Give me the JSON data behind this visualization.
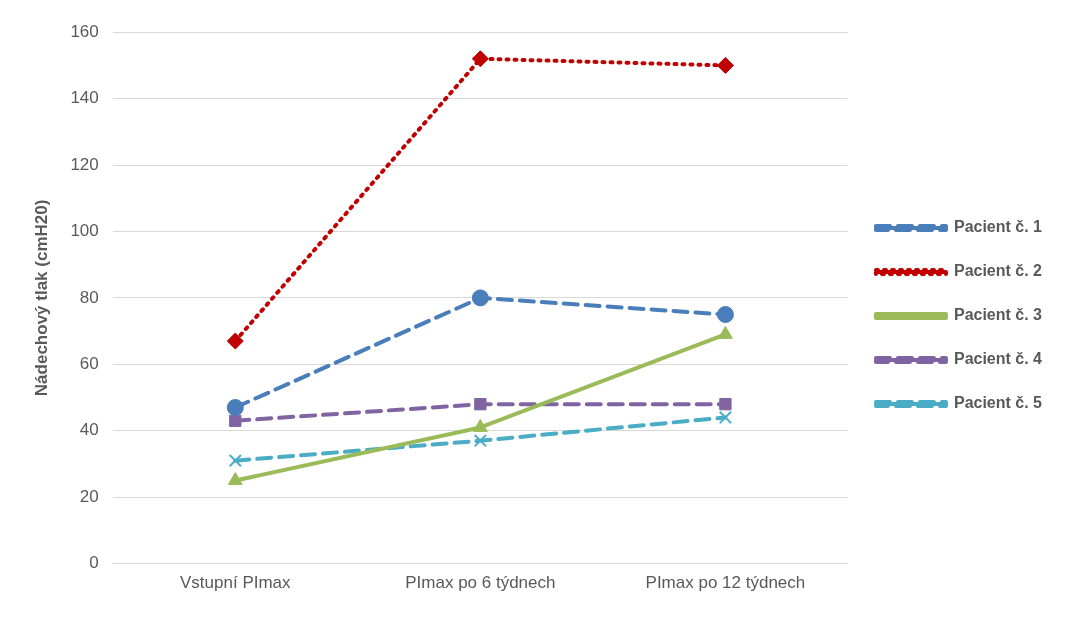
{
  "chart_data": {
    "type": "line",
    "ylabel": "Nádechový tlak (cmH20)",
    "categories": [
      "Vstupní PImax",
      "PImax po 6 týdnech",
      "PImax po 12 týdnech"
    ],
    "ylim": [
      0,
      160
    ],
    "yticks": [
      0,
      20,
      40,
      60,
      80,
      100,
      120,
      140,
      160
    ],
    "grid": "y",
    "legend": "right",
    "series": [
      {
        "name": "Pacient č. 1",
        "color": "#4a7ebb",
        "values": [
          47,
          80,
          75
        ],
        "marker": "circle",
        "line_style": "dashed"
      },
      {
        "name": "Pacient č. 2",
        "color": "#c00000",
        "values": [
          67,
          152,
          150
        ],
        "marker": "diamond",
        "line_style": "dotted"
      },
      {
        "name": "Pacient č. 3",
        "color": "#9bbb59",
        "values": [
          25,
          41,
          69
        ],
        "marker": "triangle",
        "line_style": "solid"
      },
      {
        "name": "Pacient č. 4",
        "color": "#8064a2",
        "values": [
          43,
          48,
          48
        ],
        "marker": "square",
        "line_style": "dashed"
      },
      {
        "name": "Pacient č. 5",
        "color": "#4bacc6",
        "values": [
          31,
          37,
          44
        ],
        "marker": "cross",
        "line_style": "dashed"
      }
    ]
  }
}
